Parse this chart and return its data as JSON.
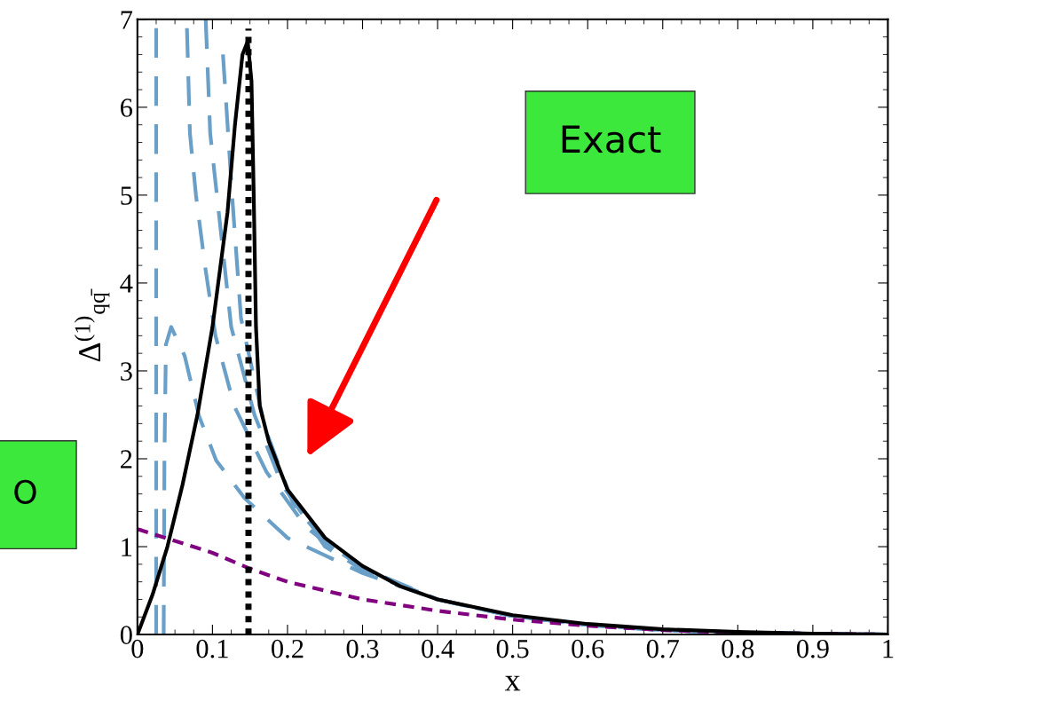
{
  "chart_data": {
    "type": "line",
    "xlabel": "x",
    "ylabel": "Δ$^{(1)}$$_{qq̄}$",
    "xlim": [
      0,
      1
    ],
    "ylim": [
      0,
      7
    ],
    "xticks": [
      0,
      0.1,
      0.2,
      0.3,
      0.4,
      0.5,
      0.6,
      0.7,
      0.8,
      0.9,
      1
    ],
    "yticks": [
      0,
      1,
      2,
      3,
      4,
      5,
      6,
      7
    ],
    "grid": false,
    "legend": false,
    "series": [
      {
        "color": "#6a9fc8",
        "line_style": "dashed",
        "x": [
          0.025,
          0.025,
          0.025
        ],
        "values": [
          6.9,
          3.5,
          0
        ]
      },
      {
        "color": "#6a9fc8",
        "line_style": "dashed",
        "x": [
          0.035,
          0.036,
          0.038,
          0.045,
          0.063,
          0.082,
          0.105,
          0.143,
          0.2,
          0.25,
          0.3,
          0.4,
          0.5,
          0.6,
          0.7,
          0.8,
          0.9,
          1.0
        ],
        "values": [
          0,
          2.0,
          3.3,
          3.5,
          3.17,
          2.49,
          1.98,
          1.55,
          1.1,
          0.9,
          0.7,
          0.4,
          0.21,
          0.11,
          0.05,
          0.02,
          0.01,
          0
        ]
      },
      {
        "color": "#6a9fc8",
        "line_style": "dashed",
        "x": [
          0.066,
          0.07,
          0.078,
          0.09,
          0.104,
          0.129,
          0.172,
          0.225,
          0.3,
          0.4,
          0.5,
          0.6,
          0.7,
          0.8,
          0.9,
          1.0
        ],
        "values": [
          6.9,
          5.7,
          5.0,
          4.2,
          3.4,
          2.6,
          1.85,
          1.22,
          0.72,
          0.4,
          0.21,
          0.11,
          0.05,
          0.02,
          0.01,
          0
        ]
      },
      {
        "color": "#6a9fc8",
        "line_style": "dashed",
        "x": [
          0.091,
          0.097,
          0.111,
          0.125,
          0.156,
          0.193,
          0.25,
          0.3,
          0.4,
          0.5,
          0.6,
          0.7,
          0.8,
          0.9,
          1.0
        ],
        "values": [
          7.0,
          5.7,
          4.6,
          3.5,
          2.5,
          1.7,
          1.0,
          0.74,
          0.4,
          0.21,
          0.11,
          0.05,
          0.02,
          0.01,
          0
        ]
      },
      {
        "color": "#6a9fc8",
        "line_style": "dashed",
        "x": [
          0.114,
          0.127,
          0.138,
          0.17,
          0.207,
          0.25,
          0.3,
          0.4,
          0.5,
          0.6,
          0.7,
          0.8,
          0.9,
          1.0
        ],
        "values": [
          6.6,
          4.9,
          3.6,
          2.35,
          1.5,
          1.05,
          0.76,
          0.4,
          0.21,
          0.11,
          0.05,
          0.02,
          0.01,
          0
        ]
      },
      {
        "color": "#800080",
        "line_style": "dashed",
        "x": [
          0,
          0.1,
          0.15,
          0.2,
          0.3,
          0.4,
          0.5,
          0.6,
          0.7,
          0.8,
          0.9,
          1.0
        ],
        "values": [
          1.2,
          0.93,
          0.75,
          0.6,
          0.4,
          0.27,
          0.17,
          0.1,
          0.05,
          0.02,
          0.01,
          0
        ]
      },
      {
        "color": "#000000",
        "line_style": "solid",
        "x": [
          0,
          0.02,
          0.04,
          0.06,
          0.08,
          0.1,
          0.12,
          0.13,
          0.14,
          0.147,
          0.152,
          0.155,
          0.158,
          0.163,
          0.175,
          0.2,
          0.25,
          0.3,
          0.35,
          0.4,
          0.5,
          0.6,
          0.7,
          0.8,
          0.9,
          1.0
        ],
        "values": [
          0,
          0.45,
          1.0,
          1.7,
          2.5,
          3.5,
          4.8,
          5.8,
          6.6,
          6.75,
          6.3,
          5.0,
          3.5,
          2.6,
          2.2,
          1.65,
          1.1,
          0.78,
          0.55,
          0.4,
          0.22,
          0.12,
          0.06,
          0.03,
          0.01,
          0
        ]
      }
    ],
    "ref_lines": [
      {
        "axis": "x",
        "value": 0.148,
        "color": "#000000",
        "line_style": "dotted"
      }
    ],
    "annotations": [
      "Exact",
      "O"
    ]
  }
}
